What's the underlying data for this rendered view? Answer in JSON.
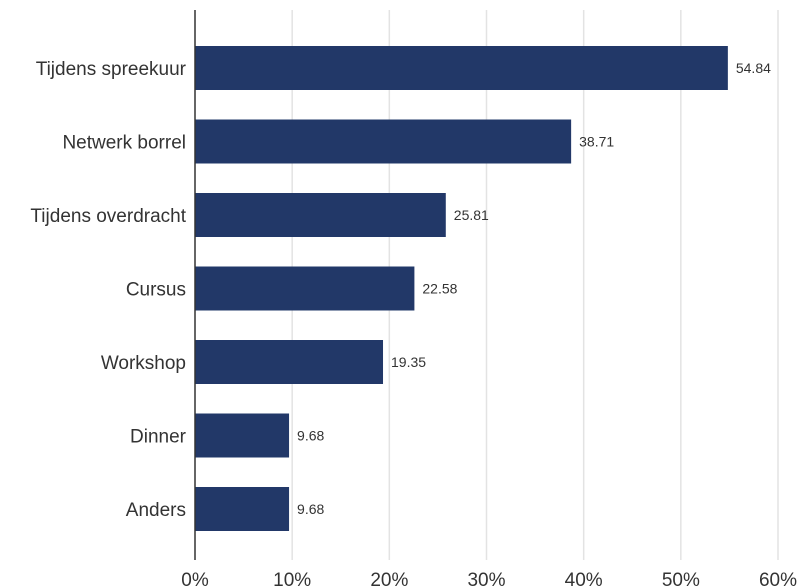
{
  "chart_data": {
    "type": "bar",
    "orientation": "horizontal",
    "categories": [
      "Tijdens spreekuur",
      "Netwerk borrel",
      "Tijdens overdracht",
      "Cursus",
      "Workshop",
      "Dinner",
      "Anders"
    ],
    "values": [
      54.84,
      38.71,
      25.81,
      22.58,
      19.35,
      9.68,
      9.68
    ],
    "value_labels": [
      "54.84",
      "38.71",
      "25.81",
      "22.58",
      "19.35",
      "9.68",
      "9.68"
    ],
    "x_ticks": [
      "0%",
      "10%",
      "20%",
      "30%",
      "40%",
      "50%",
      "60%"
    ],
    "xlim": [
      0,
      60
    ],
    "grid": true,
    "legend": "none",
    "bar_color": "#223868",
    "title": "",
    "xlabel": "",
    "ylabel": ""
  }
}
